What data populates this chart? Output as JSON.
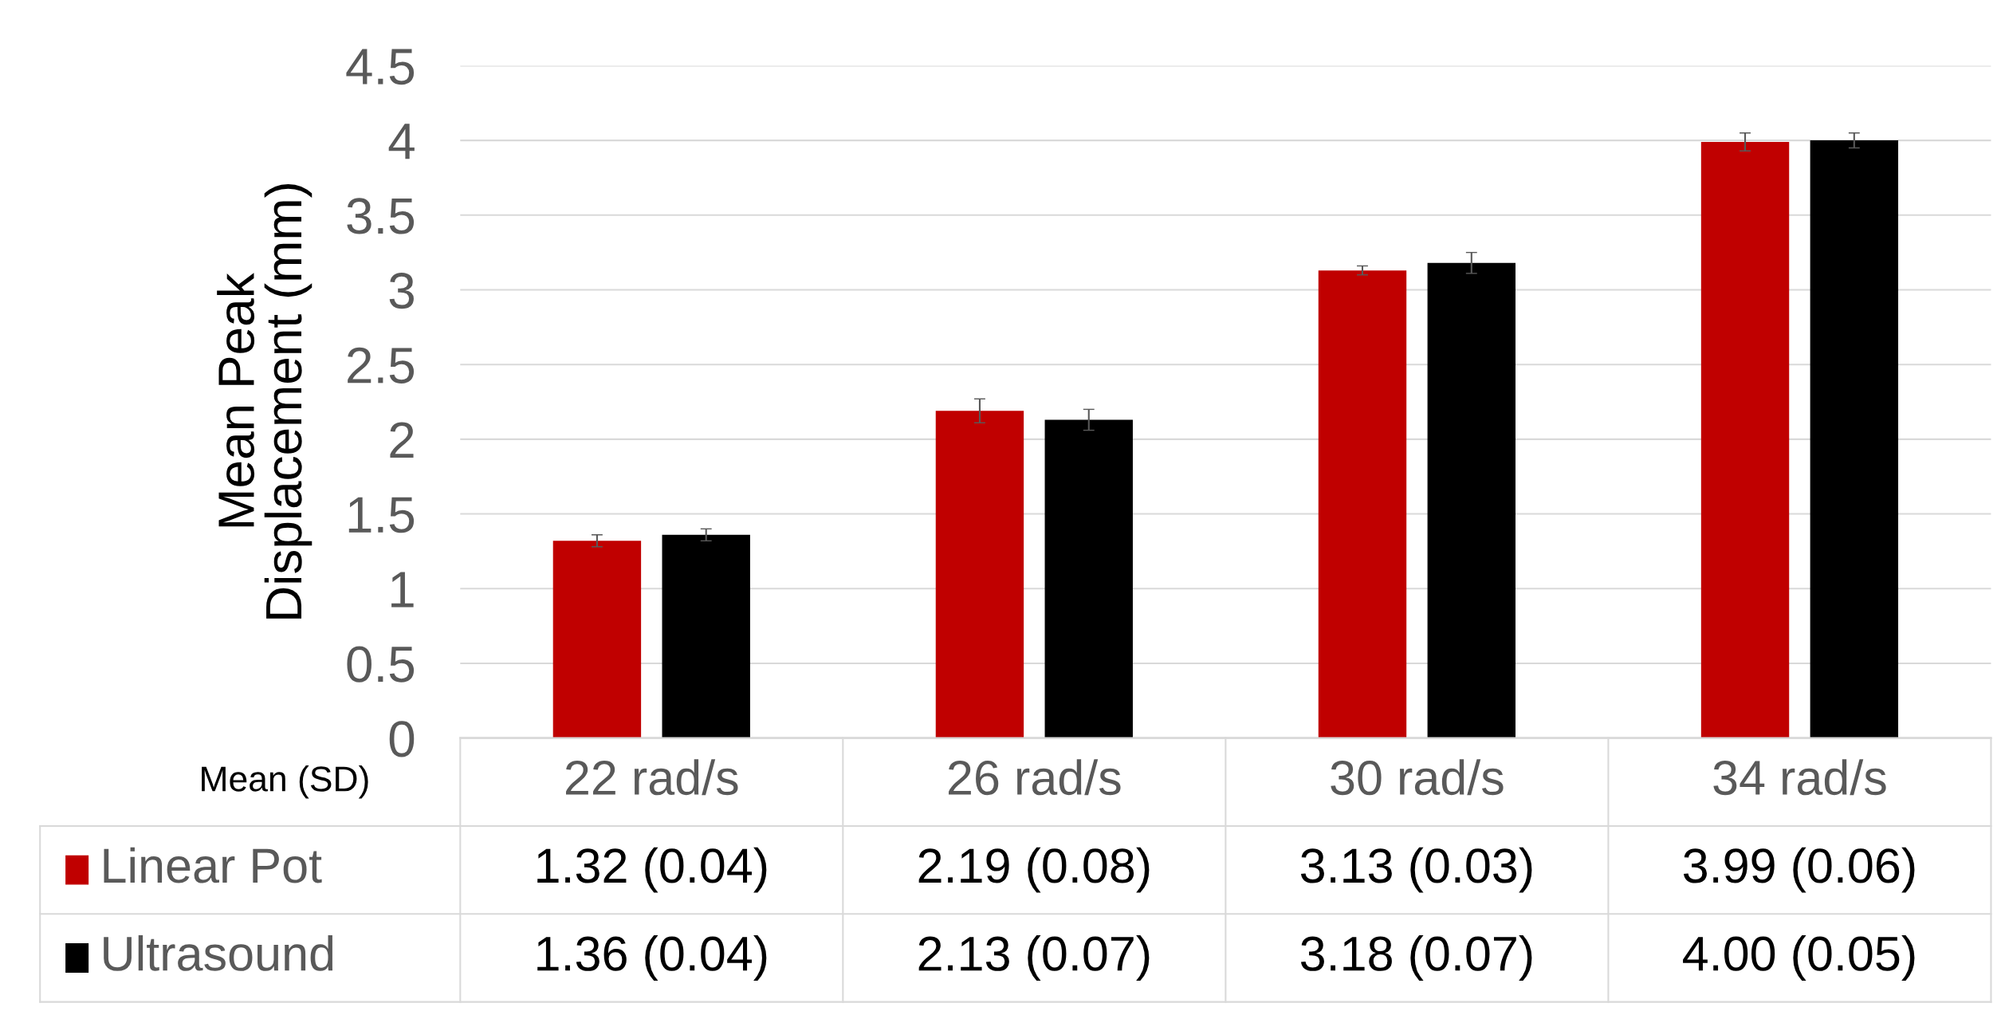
{
  "chart_data": {
    "type": "bar",
    "ylabel": "Mean Peak\nDisplacement (mm)",
    "categories": [
      "22 rad/s",
      "26 rad/s",
      "30 rad/s",
      "34 rad/s"
    ],
    "series": [
      {
        "name": "Linear Pot",
        "color": "#c00000",
        "values": [
          1.32,
          2.19,
          3.13,
          3.99
        ],
        "errors": [
          0.04,
          0.08,
          0.03,
          0.06
        ],
        "value_labels": [
          "1.32 (0.04)",
          "2.19 (0.08)",
          "3.13 (0.03)",
          "3.99 (0.06)"
        ]
      },
      {
        "name": "Ultrasound",
        "color": "#000000",
        "values": [
          1.36,
          2.13,
          3.18,
          4.0
        ],
        "errors": [
          0.04,
          0.07,
          0.07,
          0.05
        ],
        "value_labels": [
          "1.36 (0.04)",
          "2.13 (0.07)",
          "3.18 (0.07)",
          "4.00 (0.05)"
        ]
      }
    ],
    "ylim": [
      0,
      4.5
    ],
    "yticks": [
      0,
      0.5,
      1,
      1.5,
      2,
      2.5,
      3,
      3.5,
      4,
      4.5
    ],
    "grid": "y",
    "legend": "bottom left",
    "annotations": [
      "Mean (SD)"
    ]
  }
}
